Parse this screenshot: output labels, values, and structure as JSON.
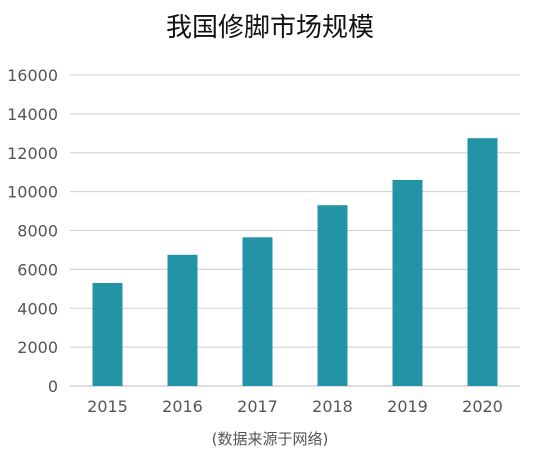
{
  "chart_data": {
    "type": "bar",
    "title": "我国修脚市场规模",
    "categories": [
      "2015",
      "2016",
      "2017",
      "2018",
      "2019",
      "2020"
    ],
    "values": [
      5300,
      6750,
      7650,
      9300,
      10600,
      12750
    ],
    "ylim": [
      0,
      16000
    ],
    "yticks": [
      0,
      2000,
      4000,
      6000,
      8000,
      10000,
      12000,
      14000,
      16000
    ],
    "grid": true,
    "legend": "none",
    "source": "(数据来源于网络)",
    "bar_color": "#2294A6"
  }
}
